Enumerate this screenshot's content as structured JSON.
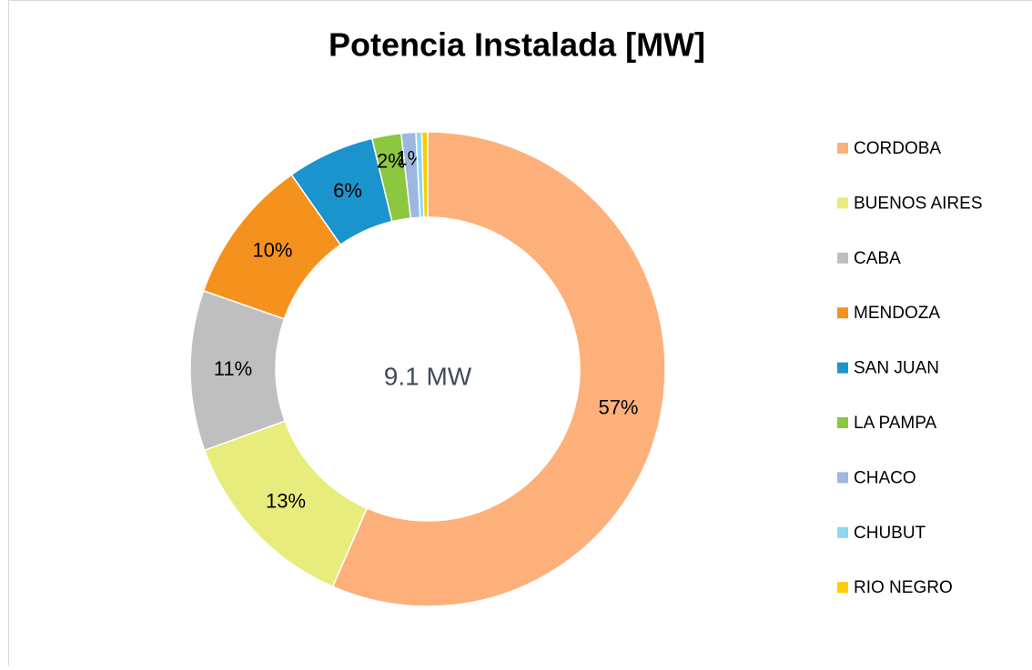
{
  "chart_data": {
    "type": "donut",
    "title": "Potencia Instalada [MW]",
    "center_label": "9.1 MW",
    "categories": [
      "CORDOBA",
      "BUENOS AIRES",
      "CABA",
      "MENDOZA",
      "SAN JUAN",
      "LA PAMPA",
      "CHACO",
      "CHUBUT",
      "RIO NEGRO"
    ],
    "values": [
      57,
      13,
      11,
      10,
      6,
      2,
      1,
      0.4,
      0.4
    ],
    "value_labels": [
      "57%",
      "13%",
      "11%",
      "10%",
      "6%",
      "2%",
      "1%",
      null,
      null
    ],
    "colors": [
      "#FDB07A",
      "#E8EC7C",
      "#BFBFBF",
      "#F5921E",
      "#1B94CE",
      "#8DC63F",
      "#9DB7DF",
      "#8FD7F0",
      "#FFCC00"
    ],
    "legend": "right"
  }
}
